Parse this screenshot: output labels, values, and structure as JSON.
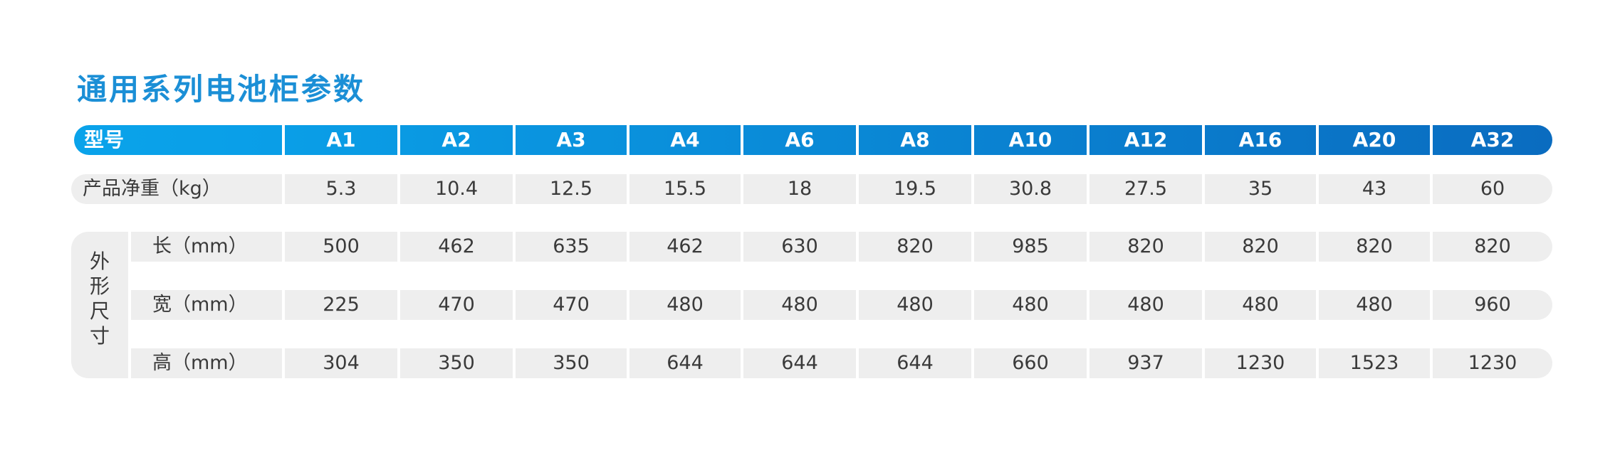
{
  "title": "通用系列电池柜参数",
  "header": {
    "model_label": "型号",
    "models": [
      "A1",
      "A2",
      "A3",
      "A4",
      "A6",
      "A8",
      "A10",
      "A12",
      "A16",
      "A20",
      "A32"
    ]
  },
  "weight_row": {
    "label": "产品净重（kg）",
    "values": [
      "5.3",
      "10.4",
      "12.5",
      "15.5",
      "18",
      "19.5",
      "30.8",
      "27.5",
      "35",
      "43",
      "60"
    ]
  },
  "dimensions": {
    "group_label": [
      "外",
      "形",
      "尺",
      "寸"
    ],
    "rows": [
      {
        "label": "长（mm）",
        "values": [
          "500",
          "462",
          "635",
          "462",
          "630",
          "820",
          "985",
          "820",
          "820",
          "820",
          "820"
        ]
      },
      {
        "label": "宽（mm）",
        "values": [
          "225",
          "470",
          "470",
          "480",
          "480",
          "480",
          "480",
          "480",
          "480",
          "480",
          "960"
        ]
      },
      {
        "label": "高（mm）",
        "values": [
          "304",
          "350",
          "350",
          "644",
          "644",
          "644",
          "660",
          "937",
          "1230",
          "1523",
          "1230"
        ]
      }
    ]
  },
  "colors": {
    "title": "#1b8fd6",
    "header_gradient_start": "#0aa3ea",
    "header_gradient_end": "#0a6cc0",
    "row_background": "#eeeeee"
  }
}
